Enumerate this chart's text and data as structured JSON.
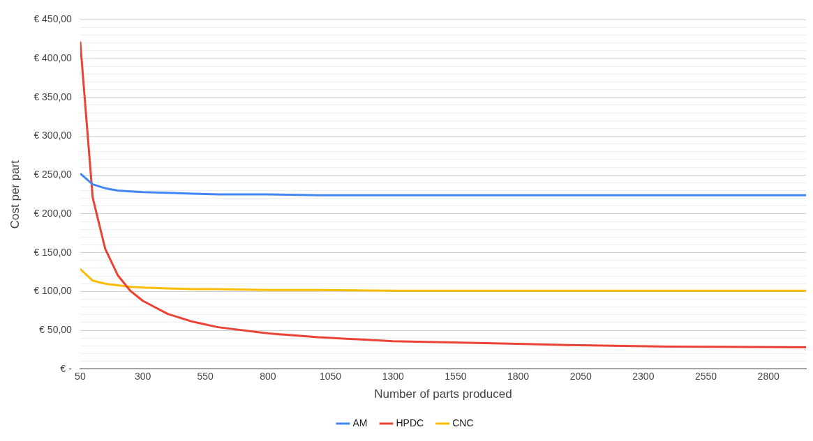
{
  "chart_data": {
    "type": "line",
    "xlabel": "Number of parts produced",
    "ylabel": "Cost per part",
    "x": [
      50,
      100,
      150,
      200,
      250,
      300,
      400,
      500,
      600,
      800,
      1000,
      1300,
      1600,
      2000,
      2400,
      2950
    ],
    "xlim": [
      50,
      2950
    ],
    "xticks": [
      50,
      300,
      550,
      800,
      1050,
      1300,
      1550,
      1800,
      2050,
      2300,
      2550,
      2800
    ],
    "ylim": [
      0,
      450
    ],
    "yticks": [
      {
        "value": 0,
        "label": "€ -"
      },
      {
        "value": 10,
        "label": null
      },
      {
        "value": 20,
        "label": null
      },
      {
        "value": 30,
        "label": null
      },
      {
        "value": 40,
        "label": null
      },
      {
        "value": 50,
        "label": "€ 50,00"
      },
      {
        "value": 60,
        "label": null
      },
      {
        "value": 70,
        "label": null
      },
      {
        "value": 80,
        "label": null
      },
      {
        "value": 90,
        "label": null
      },
      {
        "value": 100,
        "label": "€ 100,00"
      },
      {
        "value": 110,
        "label": null
      },
      {
        "value": 120,
        "label": null
      },
      {
        "value": 130,
        "label": null
      },
      {
        "value": 140,
        "label": null
      },
      {
        "value": 150,
        "label": "€ 150,00"
      },
      {
        "value": 160,
        "label": null
      },
      {
        "value": 170,
        "label": null
      },
      {
        "value": 180,
        "label": null
      },
      {
        "value": 190,
        "label": null
      },
      {
        "value": 200,
        "label": "€ 200,00"
      },
      {
        "value": 210,
        "label": null
      },
      {
        "value": 220,
        "label": null
      },
      {
        "value": 230,
        "label": null
      },
      {
        "value": 240,
        "label": null
      },
      {
        "value": 250,
        "label": "€ 250,00"
      },
      {
        "value": 260,
        "label": null
      },
      {
        "value": 270,
        "label": null
      },
      {
        "value": 280,
        "label": null
      },
      {
        "value": 290,
        "label": null
      },
      {
        "value": 300,
        "label": "€ 300,00"
      },
      {
        "value": 310,
        "label": null
      },
      {
        "value": 320,
        "label": null
      },
      {
        "value": 330,
        "label": null
      },
      {
        "value": 340,
        "label": null
      },
      {
        "value": 350,
        "label": "€ 350,00"
      },
      {
        "value": 360,
        "label": null
      },
      {
        "value": 370,
        "label": null
      },
      {
        "value": 380,
        "label": null
      },
      {
        "value": 390,
        "label": null
      },
      {
        "value": 400,
        "label": "€ 400,00"
      },
      {
        "value": 410,
        "label": null
      },
      {
        "value": 420,
        "label": null
      },
      {
        "value": 430,
        "label": null
      },
      {
        "value": 440,
        "label": null
      },
      {
        "value": 450,
        "label": "€ 450,00"
      }
    ],
    "grid": "y",
    "legend": "bottom",
    "marker": "none",
    "line_style": "solid",
    "series": [
      {
        "name": "AM",
        "color": "#4285f4",
        "values": [
          252,
          238,
          233,
          230,
          229,
          228,
          227,
          226,
          225,
          225,
          224,
          224,
          224,
          224,
          224,
          224
        ]
      },
      {
        "name": "HPDC",
        "color": "#ea4335",
        "values": [
          422,
          221,
          155,
          121,
          101,
          88,
          71,
          61,
          54,
          46,
          41,
          36,
          34,
          31,
          29,
          28
        ]
      },
      {
        "name": "CNC",
        "color": "#fbbc04",
        "values": [
          129,
          114,
          110,
          108,
          106,
          105,
          104,
          103,
          103,
          102,
          102,
          101,
          101,
          101,
          101,
          101
        ]
      }
    ]
  }
}
